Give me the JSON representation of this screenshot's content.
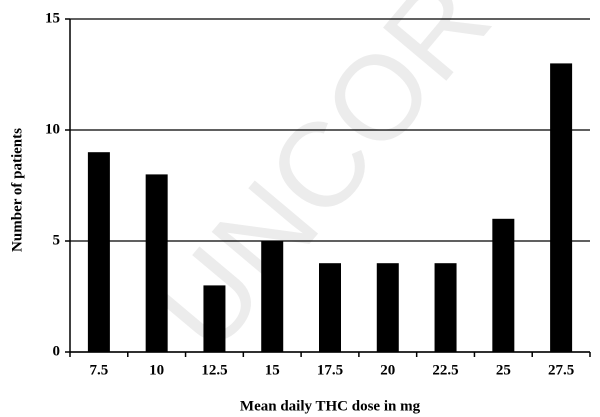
{
  "chart_data": {
    "type": "bar",
    "watermark": "UNCOR",
    "xlabel": "Mean daily THC dose in mg",
    "ylabel": "Number of patients",
    "categories": [
      "7.5",
      "10",
      "12.5",
      "15",
      "17.5",
      "20",
      "22.5",
      "25",
      "27.5"
    ],
    "values": [
      9,
      8,
      3,
      5,
      4,
      4,
      4,
      6,
      13
    ],
    "color": "#000000",
    "ylim": [
      0,
      15
    ],
    "yticks": [
      0,
      5,
      10,
      15
    ],
    "grid": true
  }
}
